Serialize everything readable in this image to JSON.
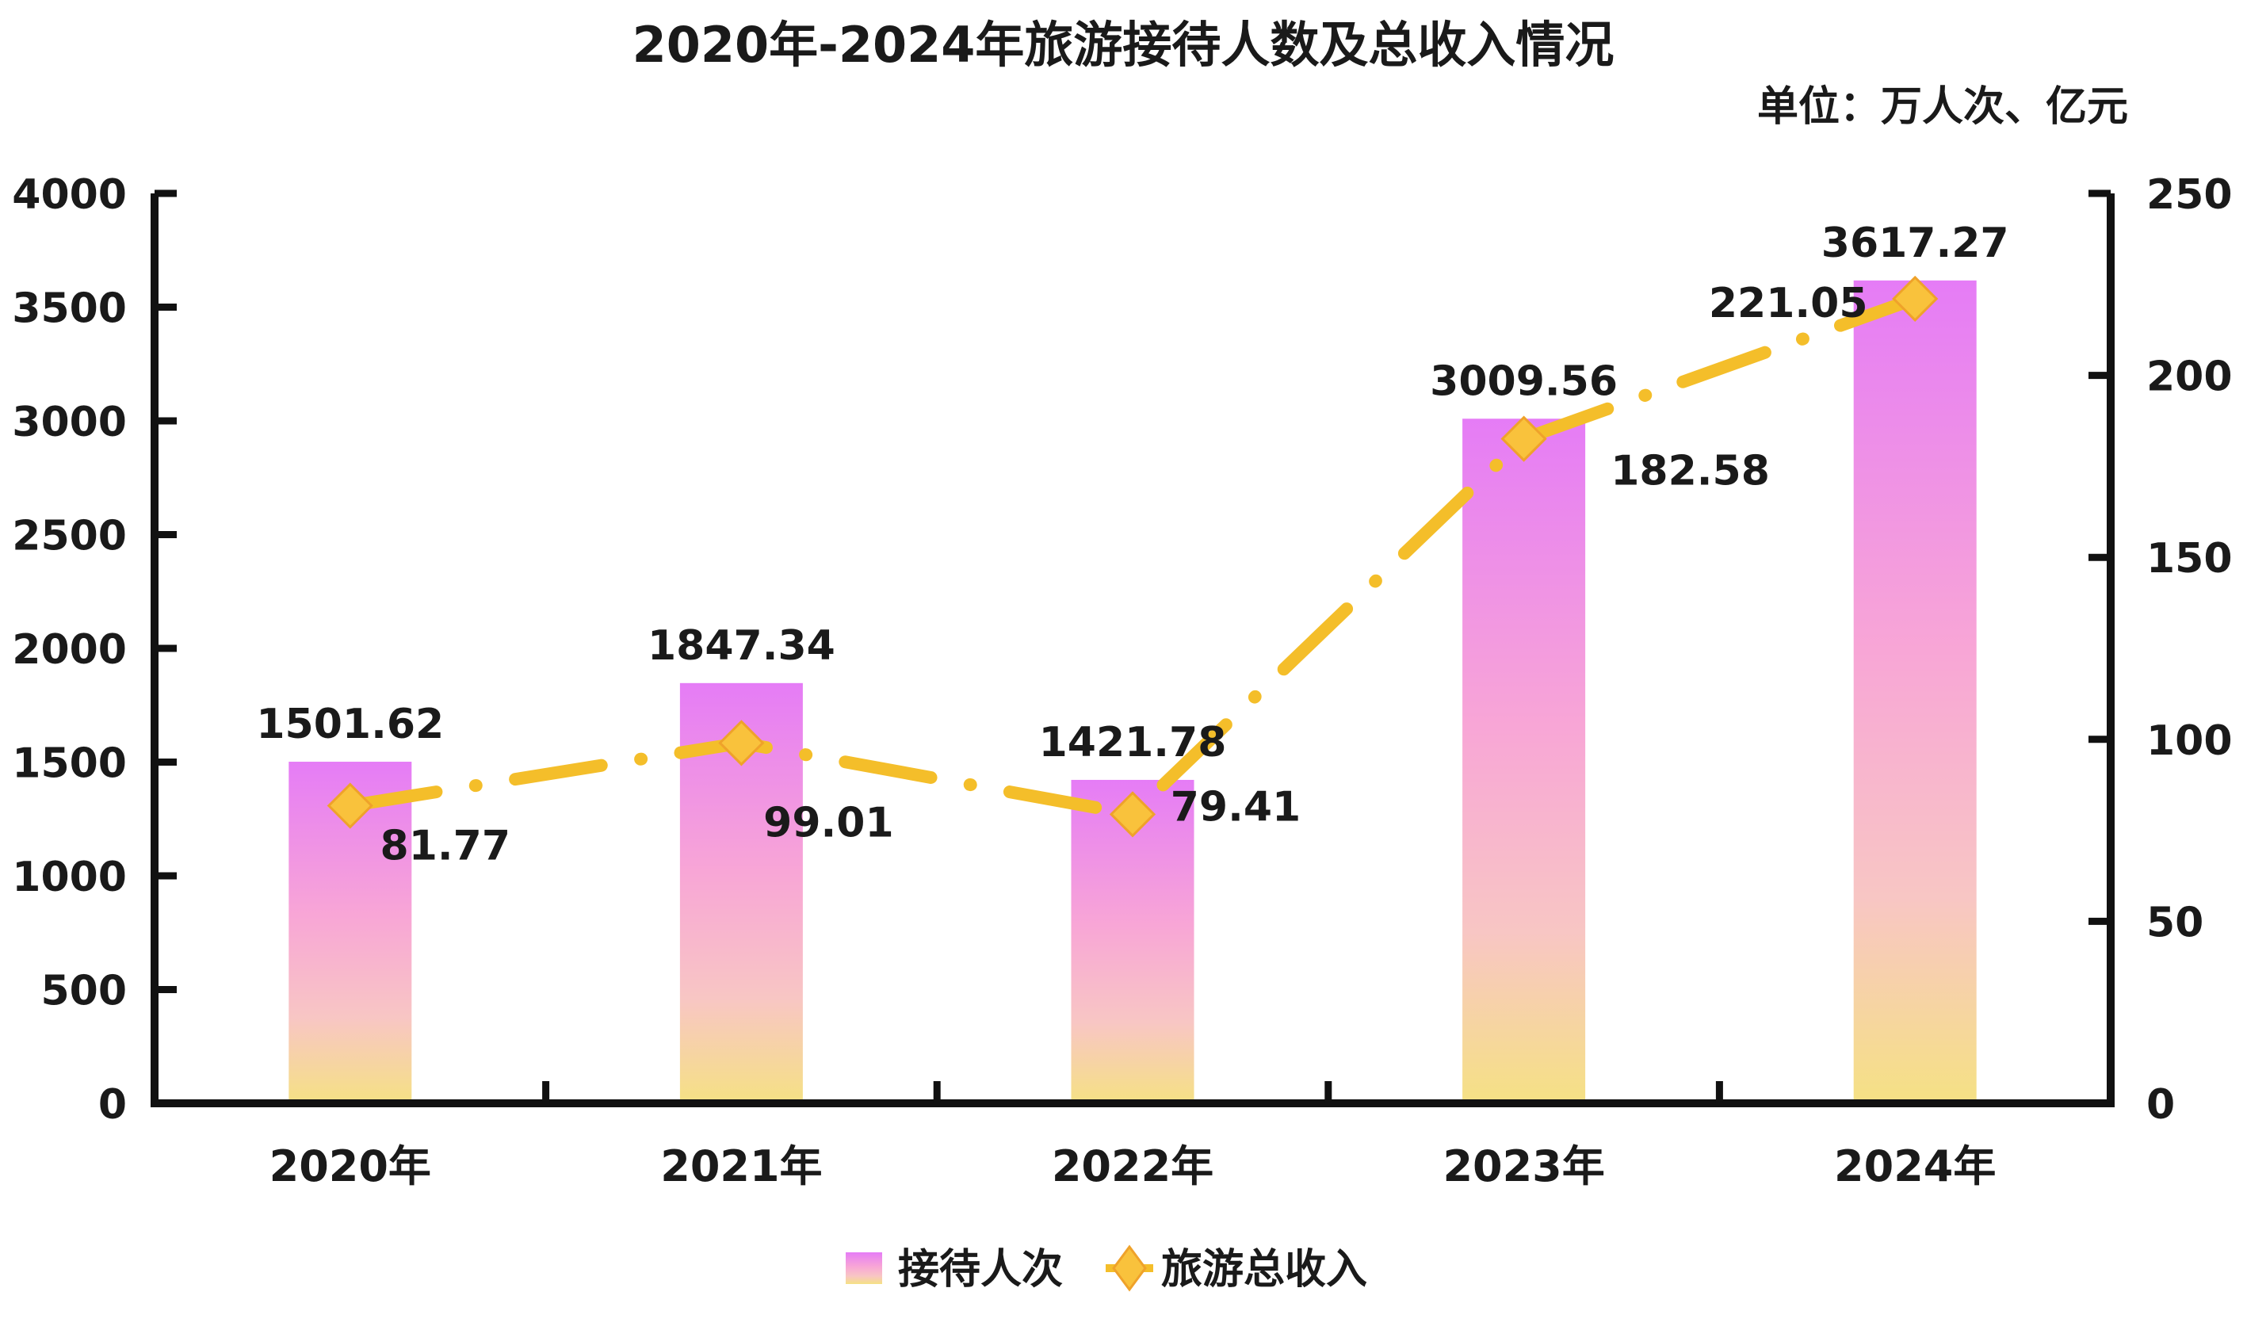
{
  "chart_data": {
    "type": "bar+line",
    "title": "2020年-2024年旅游接待人数及总收入情况",
    "unit": "单位：万人次、亿元",
    "categories": [
      "2020年",
      "2021年",
      "2022年",
      "2023年",
      "2024年"
    ],
    "series": [
      {
        "name": "接待人次",
        "type": "bar",
        "axis": "left",
        "values": [
          1501.62,
          1847.34,
          1421.78,
          3009.56,
          3617.27
        ],
        "labels": [
          "1501.62",
          "1847.34",
          "1421.78",
          "3009.56",
          "3617.27"
        ]
      },
      {
        "name": "旅游总收入",
        "type": "line",
        "axis": "right",
        "values": [
          81.77,
          99.01,
          79.41,
          182.58,
          221.05
        ],
        "labels": [
          "81.77",
          "99.01",
          "79.41",
          "182.58",
          "221.05"
        ]
      }
    ],
    "y_left": {
      "min": 0,
      "max": 4000,
      "ticks": [
        "0",
        "500",
        "1000",
        "1500",
        "2000",
        "2500",
        "3000",
        "3500",
        "4000"
      ]
    },
    "y_right": {
      "min": 0,
      "max": 250,
      "ticks": [
        "0",
        "50",
        "100",
        "150",
        "200",
        "250"
      ]
    },
    "grid": false,
    "legend_position": "bottom",
    "colors": {
      "bar_top": "#E57CF6",
      "bar_mid": "#F8A6D6",
      "bar_bottom": "#F5E184",
      "line": "#F4BE2A",
      "marker_fill": "#F9C23C",
      "marker_stroke": "#EFA22A",
      "axis": "#111111"
    }
  }
}
